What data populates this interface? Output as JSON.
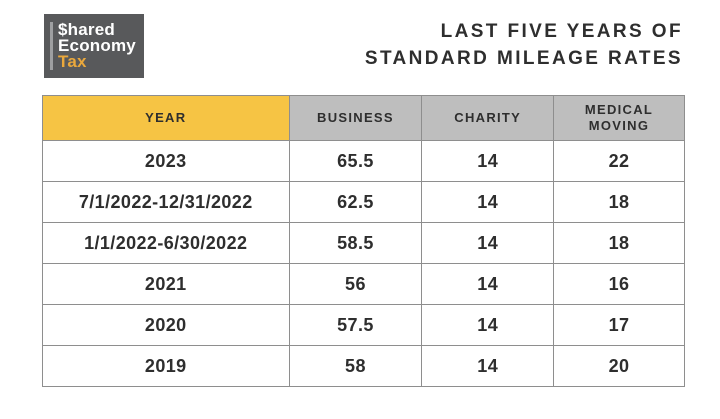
{
  "logo": {
    "line1": "$hared",
    "line2": "Economy",
    "line3": "Tax"
  },
  "title": {
    "line1": "LAST FIVE YEARS OF",
    "line2": "STANDARD MILEAGE RATES"
  },
  "table": {
    "headers": [
      "YEAR",
      "BUSINESS",
      "CHARITY",
      "MEDICAL\nMOVING"
    ],
    "rows": [
      [
        "2023",
        "65.5",
        "14",
        "22"
      ],
      [
        "7/1/2022-12/31/2022",
        "62.5",
        "14",
        "18"
      ],
      [
        "1/1/2022-6/30/2022",
        "58.5",
        "14",
        "18"
      ],
      [
        "2021",
        "56",
        "14",
        "16"
      ],
      [
        "2020",
        "57.5",
        "14",
        "17"
      ],
      [
        "2019",
        "58",
        "14",
        "20"
      ]
    ]
  },
  "colors": {
    "logo_background": "#58595B",
    "logo_accent_bar": "#9E9FA1",
    "logo_tax_text": "#EAA83C",
    "header_year_background": "#F6C444",
    "header_gray_background": "#BEBEBE",
    "table_border": "#8E8E8E",
    "text": "#2E2E2E"
  },
  "chart_data": {
    "type": "table",
    "title": "LAST FIVE YEARS OF STANDARD MILEAGE RATES",
    "columns": [
      "YEAR",
      "BUSINESS",
      "CHARITY",
      "MEDICAL MOVING"
    ],
    "rows": [
      {
        "year": "2023",
        "business": 65.5,
        "charity": 14,
        "medical_moving": 22
      },
      {
        "year": "7/1/2022-12/31/2022",
        "business": 62.5,
        "charity": 14,
        "medical_moving": 18
      },
      {
        "year": "1/1/2022-6/30/2022",
        "business": 58.5,
        "charity": 14,
        "medical_moving": 18
      },
      {
        "year": "2021",
        "business": 56,
        "charity": 14,
        "medical_moving": 16
      },
      {
        "year": "2020",
        "business": 57.5,
        "charity": 14,
        "medical_moving": 17
      },
      {
        "year": "2019",
        "business": 58,
        "charity": 14,
        "medical_moving": 20
      }
    ]
  }
}
